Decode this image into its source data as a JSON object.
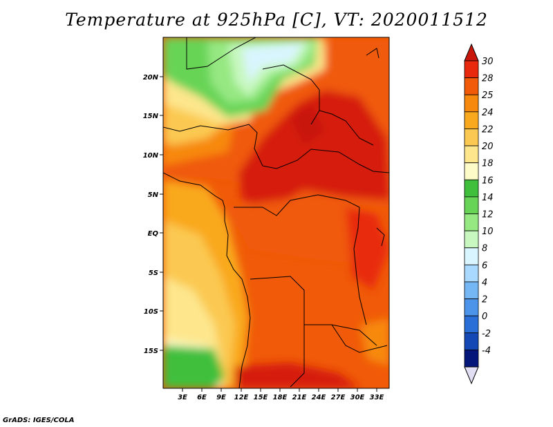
{
  "title": "Temperature at 925hPa [C], VT: 2020011512",
  "credit": "GrADS: IGES/COLA",
  "map": {
    "lat_labels": [
      "20N",
      "15N",
      "10N",
      "5N",
      "EQ",
      "5S",
      "10S",
      "15S"
    ],
    "lon_labels": [
      "3E",
      "6E",
      "9E",
      "12E",
      "15E",
      "18E",
      "21E",
      "24E",
      "27E",
      "30E",
      "33E"
    ],
    "colorbar": {
      "labels": [
        "30",
        "28",
        "25",
        "24",
        "22",
        "20",
        "18",
        "16",
        "14",
        "12",
        "10",
        "8",
        "6",
        "4",
        "2",
        "0",
        "-2",
        "-4"
      ],
      "colors": [
        "#e8290e",
        "#f05a08",
        "#f7890f",
        "#f9a91e",
        "#fbc951",
        "#fde68c",
        "#fdfbc8",
        "#3fbf3c",
        "#67d457",
        "#96e882",
        "#c8f8c0",
        "#d9f5ff",
        "#a9d9ff",
        "#75b7f5",
        "#4c94ea",
        "#2a6fd8",
        "#1449b5",
        "#05167a"
      ],
      "top_arrow": "#c8170a",
      "bottom_arrow": "#e2dff5"
    }
  }
}
